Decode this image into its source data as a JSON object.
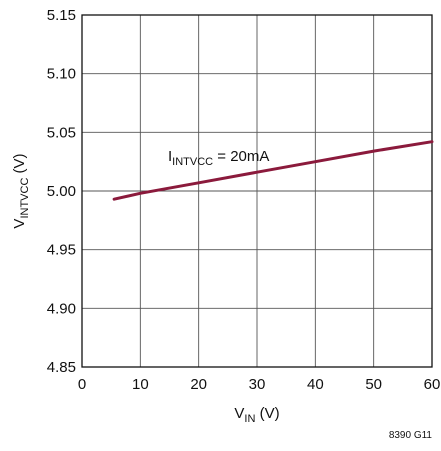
{
  "chart_data": {
    "type": "line",
    "x_axis": {
      "label_main": "V",
      "label_sub": "IN",
      "label_unit": " (V)",
      "range": [
        0,
        60
      ],
      "ticks": [
        "0",
        "10",
        "20",
        "30",
        "40",
        "50",
        "60"
      ]
    },
    "y_axis": {
      "label_main": "V",
      "label_sub": "INTVCC",
      "label_unit": " (V)",
      "range": [
        4.85,
        5.15
      ],
      "ticks": [
        "4.85",
        "4.90",
        "4.95",
        "5.00",
        "5.05",
        "5.10",
        "5.15"
      ]
    },
    "grid": true,
    "series": [
      {
        "color": "#8b1a3c",
        "x": [
          5.5,
          10,
          20,
          30,
          40,
          50,
          60
        ],
        "y": [
          4.993,
          4.998,
          5.007,
          5.016,
          5.025,
          5.034,
          5.042
        ]
      }
    ],
    "annotation": {
      "main": "I",
      "sub": "INTVCC",
      "rest": " = 20mA",
      "x": 15,
      "y": 5.025
    },
    "footer_code": "8390 G11"
  }
}
